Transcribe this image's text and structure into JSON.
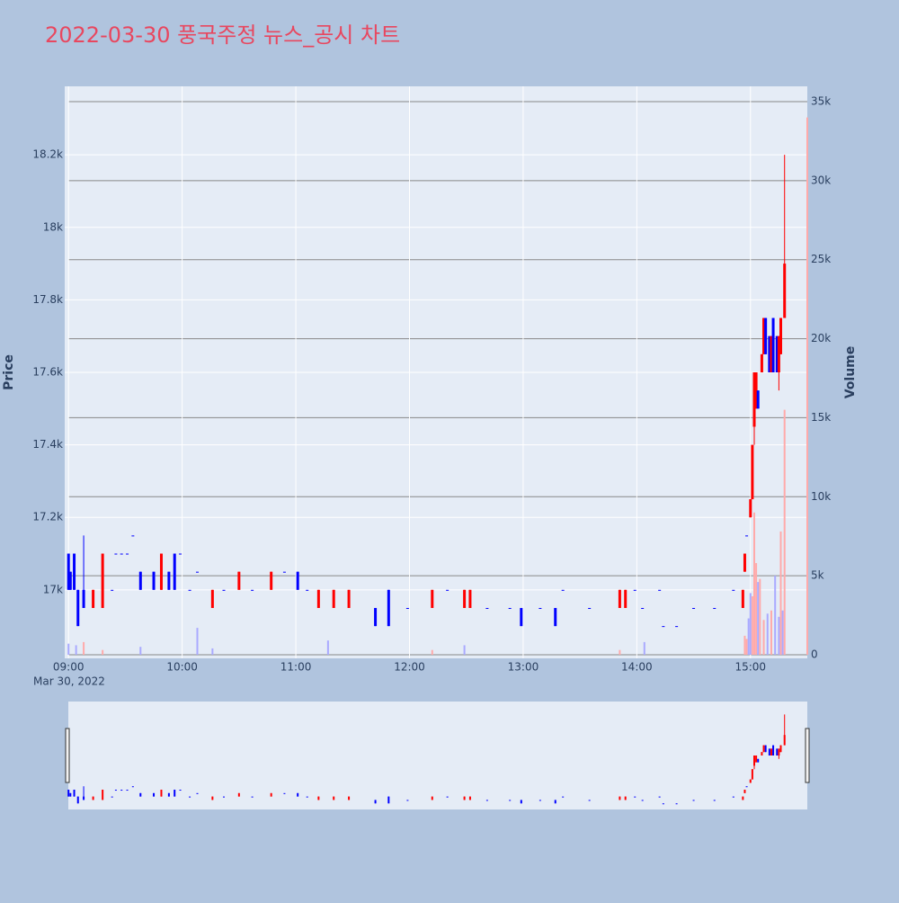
{
  "chart_data": {
    "type": "candlestick",
    "title": "2022-03-30 풍국주정 뉴스_공시 차트",
    "y_label": "Price",
    "y2_label": "Volume",
    "x_date_label": "Mar 30, 2022",
    "increasing_color": "#ff0000",
    "decreasing_color": "#0000ff",
    "xlim": [
      "2022-03-30 08:58",
      "2022-03-30 15:30"
    ],
    "xticks": [
      {
        "value": "2022-03-30 09:00",
        "label": "09:00"
      },
      {
        "value": "2022-03-30 10:00",
        "label": "10:00"
      },
      {
        "value": "2022-03-30 11:00",
        "label": "11:00"
      },
      {
        "value": "2022-03-30 12:00",
        "label": "12:00"
      },
      {
        "value": "2022-03-30 13:00",
        "label": "13:00"
      },
      {
        "value": "2022-03-30 14:00",
        "label": "14:00"
      },
      {
        "value": "2022-03-30 15:00",
        "label": "15:00"
      }
    ],
    "ylim": [
      16811,
      18389
    ],
    "yticks": [
      {
        "value": 17000,
        "label": "17k"
      },
      {
        "value": 17200,
        "label": "17.2k"
      },
      {
        "value": 17400,
        "label": "17.4k"
      },
      {
        "value": 17600,
        "label": "17.6k"
      },
      {
        "value": 17800,
        "label": "17.8k"
      },
      {
        "value": 18000,
        "label": "18k"
      },
      {
        "value": 18200,
        "label": "18.2k"
      }
    ],
    "y2lim": [
      -230,
      35970
    ],
    "y2ticks": [
      0,
      {
        "value": 5000,
        "label": "5k"
      },
      {
        "value": 10000,
        "label": "10k"
      },
      {
        "value": 15000,
        "label": "15k"
      },
      {
        "value": 20000,
        "label": "20k"
      },
      {
        "value": 25000,
        "label": "25k"
      },
      {
        "value": 30000,
        "label": "30k"
      },
      {
        "value": 35000,
        "label": "35k"
      }
    ],
    "candles": {
      "x": [
        "2022-03-30 09:00",
        "2022-03-30 09:01",
        "2022-03-30 09:03",
        "2022-03-30 09:05",
        "2022-03-30 09:08",
        "2022-03-30 09:13",
        "2022-03-30 09:18",
        "2022-03-30 09:23",
        "2022-03-30 09:25",
        "2022-03-30 09:28",
        "2022-03-30 09:31",
        "2022-03-30 09:34",
        "2022-03-30 09:38",
        "2022-03-30 09:45",
        "2022-03-30 09:49",
        "2022-03-30 09:53",
        "2022-03-30 09:56",
        "2022-03-30 09:59",
        "2022-03-30 10:04",
        "2022-03-30 10:08",
        "2022-03-30 10:16",
        "2022-03-30 10:22",
        "2022-03-30 10:30",
        "2022-03-30 10:37",
        "2022-03-30 10:47",
        "2022-03-30 10:54",
        "2022-03-30 11:01",
        "2022-03-30 11:06",
        "2022-03-30 11:12",
        "2022-03-30 11:20",
        "2022-03-30 11:28",
        "2022-03-30 11:42",
        "2022-03-30 11:49",
        "2022-03-30 11:59",
        "2022-03-30 12:12",
        "2022-03-30 12:20",
        "2022-03-30 12:29",
        "2022-03-30 12:32",
        "2022-03-30 12:41",
        "2022-03-30 12:53",
        "2022-03-30 12:59",
        "2022-03-30 13:09",
        "2022-03-30 13:17",
        "2022-03-30 13:21",
        "2022-03-30 13:35",
        "2022-03-30 13:51",
        "2022-03-30 13:54",
        "2022-03-30 13:59",
        "2022-03-30 14:03",
        "2022-03-30 14:12",
        "2022-03-30 14:14",
        "2022-03-30 14:21",
        "2022-03-30 14:30",
        "2022-03-30 14:41",
        "2022-03-30 14:51",
        "2022-03-30 14:56",
        "2022-03-30 14:57",
        "2022-03-30 14:58",
        "2022-03-30 15:00",
        "2022-03-30 15:01",
        "2022-03-30 15:02",
        "2022-03-30 15:03",
        "2022-03-30 15:04",
        "2022-03-30 15:06",
        "2022-03-30 15:07",
        "2022-03-30 15:08",
        "2022-03-30 15:10",
        "2022-03-30 15:11",
        "2022-03-30 15:12",
        "2022-03-30 15:14",
        "2022-03-30 15:15",
        "2022-03-30 15:16",
        "2022-03-30 15:18"
      ],
      "open": [
        17100,
        17050,
        17100,
        17000,
        17000,
        16950,
        16950,
        17000,
        17100,
        17100,
        17100,
        17150,
        17050,
        17050,
        17000,
        17050,
        17100,
        17100,
        17000,
        17050,
        16950,
        17000,
        17000,
        17000,
        17000,
        17050,
        17050,
        17000,
        16950,
        16950,
        16950,
        16950,
        17000,
        16950,
        16950,
        17000,
        16950,
        16950,
        16950,
        16950,
        16950,
        16950,
        16950,
        17000,
        16950,
        16950,
        16950,
        17000,
        16950,
        17000,
        16900,
        16900,
        16950,
        16950,
        17000,
        16950,
        17050,
        17150,
        17200,
        17250,
        17450,
        17500,
        17550,
        17600,
        17650,
        17750,
        17700,
        17600,
        17750,
        17700,
        17600,
        17650,
        17750
      ],
      "high": [
        17100,
        17050,
        17100,
        17000,
        17150,
        17000,
        17100,
        17000,
        17100,
        17100,
        17100,
        17150,
        17050,
        17050,
        17100,
        17050,
        17100,
        17100,
        17000,
        17050,
        17000,
        17000,
        17050,
        17000,
        17050,
        17050,
        17050,
        17000,
        17000,
        17000,
        17000,
        16950,
        17000,
        16950,
        17000,
        17000,
        17000,
        17000,
        16950,
        16950,
        16950,
        16950,
        16950,
        17000,
        16950,
        17000,
        17000,
        17000,
        16950,
        17000,
        16900,
        16900,
        16950,
        16950,
        17000,
        17000,
        17100,
        17150,
        17250,
        17400,
        17600,
        17600,
        17550,
        17650,
        17750,
        17750,
        17700,
        17700,
        17750,
        17700,
        17700,
        17750,
        18200
      ],
      "low": [
        17000,
        17000,
        17000,
        16900,
        16950,
        16950,
        16950,
        17000,
        17100,
        17100,
        17100,
        17150,
        17000,
        17000,
        17000,
        17000,
        17000,
        17100,
        17000,
        17050,
        16950,
        17000,
        17000,
        17000,
        17000,
        17050,
        17000,
        17000,
        16950,
        16950,
        16950,
        16900,
        16900,
        16950,
        16950,
        17000,
        16950,
        16950,
        16950,
        16950,
        16900,
        16950,
        16900,
        17000,
        16950,
        16950,
        16950,
        17000,
        16950,
        17000,
        16900,
        16900,
        16950,
        16950,
        17000,
        16950,
        17050,
        17150,
        17200,
        17250,
        17400,
        17500,
        17500,
        17600,
        17650,
        17650,
        17600,
        17600,
        17600,
        17600,
        17550,
        17650,
        17750
      ],
      "close": [
        17000,
        17000,
        17000,
        16900,
        16950,
        17000,
        17100,
        17000,
        17100,
        17100,
        17100,
        17150,
        17000,
        17000,
        17100,
        17000,
        17000,
        17100,
        17000,
        17050,
        17000,
        17000,
        17050,
        17000,
        17050,
        17050,
        17000,
        17000,
        17000,
        17000,
        17000,
        16900,
        16900,
        16950,
        17000,
        17000,
        17000,
        17000,
        16950,
        16950,
        16900,
        16950,
        16900,
        17000,
        16950,
        17000,
        17000,
        17000,
        16950,
        17000,
        16900,
        16900,
        16950,
        16950,
        17000,
        17000,
        17100,
        17150,
        17250,
        17400,
        17600,
        17600,
        17500,
        17650,
        17750,
        17650,
        17600,
        17700,
        17600,
        17600,
        17700,
        17750,
        17900
      ]
    },
    "volume": {
      "x": [
        "2022-03-30 09:00",
        "2022-03-30 09:04",
        "2022-03-30 09:08",
        "2022-03-30 09:18",
        "2022-03-30 09:38",
        "2022-03-30 10:08",
        "2022-03-30 10:16",
        "2022-03-30 11:17",
        "2022-03-30 12:12",
        "2022-03-30 12:29",
        "2022-03-30 13:51",
        "2022-03-30 14:04",
        "2022-03-30 14:57",
        "2022-03-30 14:58",
        "2022-03-30 14:59",
        "2022-03-30 15:00",
        "2022-03-30 15:01",
        "2022-03-30 15:02",
        "2022-03-30 15:03",
        "2022-03-30 15:04",
        "2022-03-30 15:05",
        "2022-03-30 15:07",
        "2022-03-30 15:09",
        "2022-03-30 15:11",
        "2022-03-30 15:13",
        "2022-03-30 15:15",
        "2022-03-30 15:16",
        "2022-03-30 15:17",
        "2022-03-30 15:18",
        "2022-03-30 15:30"
      ],
      "values": [
        700,
        600,
        800,
        300,
        500,
        1700,
        400,
        900,
        300,
        600,
        300,
        800,
        1200,
        1000,
        2300,
        3900,
        3700,
        9000,
        5800,
        4600,
        4800,
        2200,
        2600,
        2800,
        5000,
        2400,
        7800,
        2800,
        15500,
        34000
      ],
      "colors": [
        "#aaaaff",
        "#aaaaff",
        "#ffaaaa",
        "#ffaaaa",
        "#aaaaff",
        "#aaaaff",
        "#aaaaff",
        "#aaaaff",
        "#ffaaaa",
        "#aaaaff",
        "#ffaaaa",
        "#aaaaff",
        "#ffaaaa",
        "#ffaaaa",
        "#aaaaff",
        "#aaaaff",
        "#ffaaaa",
        "#ffaaaa",
        "#ffaaaa",
        "#aaaaff",
        "#ffaaaa",
        "#ffaaaa",
        "#aaaaff",
        "#ffaaaa",
        "#aaaaff",
        "#aaaaff",
        "#ffaaaa",
        "#aaaaff",
        "#ffaaaa",
        "#ffaaaa"
      ]
    }
  }
}
